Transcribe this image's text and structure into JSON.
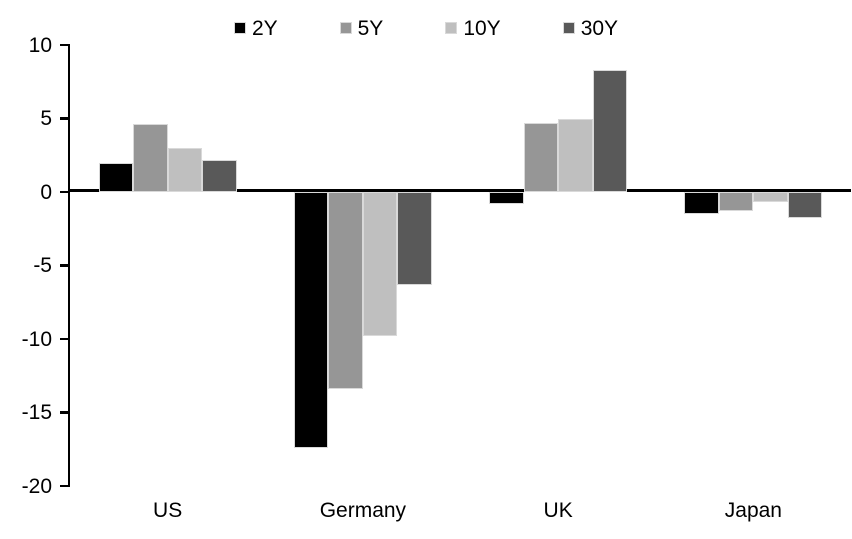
{
  "chart_data": {
    "type": "bar",
    "title": "",
    "xlabel": "",
    "ylabel": "",
    "categories": [
      "US",
      "Germany",
      "UK",
      "Japan"
    ],
    "series": [
      {
        "name": "2Y",
        "color": "#000000",
        "values": [
          2.0,
          -17.4,
          -0.8,
          -1.5
        ]
      },
      {
        "name": "5Y",
        "color": "#969696",
        "values": [
          4.6,
          -13.4,
          4.7,
          -1.3
        ]
      },
      {
        "name": "10Y",
        "color": "#bfbfbf",
        "values": [
          3.0,
          -9.8,
          5.0,
          -0.7
        ]
      },
      {
        "name": "30Y",
        "color": "#595959",
        "values": [
          2.2,
          -6.3,
          8.3,
          -1.8
        ]
      }
    ],
    "ylim": [
      -20,
      10
    ],
    "yticks": [
      10,
      5,
      0,
      -5,
      -10,
      -15,
      -20
    ],
    "grid": false,
    "legend_position": "top",
    "axis_color": "#000000",
    "bar_border_color": "#d9d9d9",
    "background_color": "#ffffff"
  }
}
